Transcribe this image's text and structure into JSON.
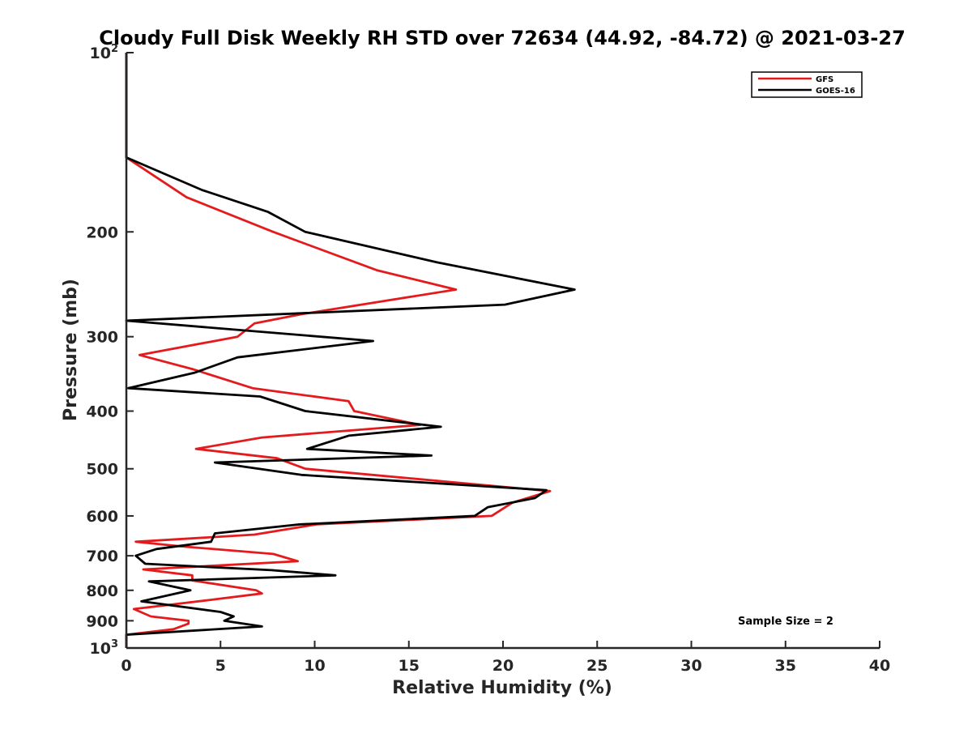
{
  "chart_data": {
    "type": "line",
    "title": "Cloudy Full Disk Weekly RH STD over 72634 (44.92, -84.72) @ 2021-03-27",
    "xlabel": "Relative Humidity (%)",
    "ylabel": "Pressure (mb)",
    "xlim": [
      0,
      40
    ],
    "ylim": [
      100,
      1000
    ],
    "y_scale": "log",
    "y_reversed": true,
    "grid": false,
    "legend_position": "top-right",
    "x_ticks": [
      "0",
      "5",
      "10",
      "15",
      "20",
      "25",
      "30",
      "35",
      "40"
    ],
    "y_ticks": [
      {
        "value": 100,
        "base": "10",
        "exp": "2"
      },
      {
        "value": 200,
        "label": "200"
      },
      {
        "value": 300,
        "label": "300"
      },
      {
        "value": 400,
        "label": "400"
      },
      {
        "value": 500,
        "label": "500"
      },
      {
        "value": 600,
        "label": "600"
      },
      {
        "value": 700,
        "label": "700"
      },
      {
        "value": 800,
        "label": "800"
      },
      {
        "value": 900,
        "label": "900"
      },
      {
        "value": 1000,
        "base": "10",
        "exp": "3"
      }
    ],
    "annotation": "Sample Size = 2",
    "series": [
      {
        "name": "GFS",
        "color": "#e41a1c",
        "points": [
          [
            0,
            100
          ],
          [
            0,
            150
          ],
          [
            3.2,
            175
          ],
          [
            7.8,
            200
          ],
          [
            13.3,
            232
          ],
          [
            17.5,
            250
          ],
          [
            9.3,
            275
          ],
          [
            6.8,
            285
          ],
          [
            5.9,
            300
          ],
          [
            0.7,
            322
          ],
          [
            3.5,
            340
          ],
          [
            6.7,
            366
          ],
          [
            11.8,
            385
          ],
          [
            12.1,
            400
          ],
          [
            15.6,
            422
          ],
          [
            7.2,
            443
          ],
          [
            3.7,
            463
          ],
          [
            8.0,
            480
          ],
          [
            9.5,
            500
          ],
          [
            17.4,
            527
          ],
          [
            22.5,
            545
          ],
          [
            20.5,
            570
          ],
          [
            19.4,
            600
          ],
          [
            10.1,
            620
          ],
          [
            6.8,
            645
          ],
          [
            0.5,
            663
          ],
          [
            2.9,
            675
          ],
          [
            7.8,
            695
          ],
          [
            9.1,
            715
          ],
          [
            0.9,
            738
          ],
          [
            3.5,
            755
          ],
          [
            3.5,
            770
          ],
          [
            6.9,
            800
          ],
          [
            7.2,
            810
          ],
          [
            4.5,
            830
          ],
          [
            0.4,
            860
          ],
          [
            1.3,
            885
          ],
          [
            3.3,
            900
          ],
          [
            3.3,
            910
          ],
          [
            2.5,
            930
          ],
          [
            0,
            950
          ],
          [
            0,
            1000
          ]
        ]
      },
      {
        "name": "GOES-16",
        "color": "#000000",
        "points": [
          [
            0,
            100
          ],
          [
            0,
            150
          ],
          [
            4.0,
            170
          ],
          [
            7.5,
            185
          ],
          [
            9.5,
            200
          ],
          [
            16.5,
            225
          ],
          [
            23.8,
            250
          ],
          [
            20.1,
            265
          ],
          [
            0,
            282
          ],
          [
            13.1,
            305
          ],
          [
            5.9,
            325
          ],
          [
            3.6,
            345
          ],
          [
            0.1,
            366
          ],
          [
            7.1,
            378
          ],
          [
            9.5,
            400
          ],
          [
            16.7,
            425
          ],
          [
            11.8,
            440
          ],
          [
            9.6,
            463
          ],
          [
            16.2,
            475
          ],
          [
            4.7,
            488
          ],
          [
            9.3,
            512
          ],
          [
            22.3,
            543
          ],
          [
            21.7,
            560
          ],
          [
            19.2,
            580
          ],
          [
            18.5,
            600
          ],
          [
            9.2,
            620
          ],
          [
            4.7,
            642
          ],
          [
            4.5,
            663
          ],
          [
            1.6,
            682
          ],
          [
            0.5,
            700
          ],
          [
            1.0,
            722
          ],
          [
            7.7,
            740
          ],
          [
            11.1,
            755
          ],
          [
            1.2,
            773
          ],
          [
            3.4,
            800
          ],
          [
            0.8,
            835
          ],
          [
            5.0,
            870
          ],
          [
            5.7,
            885
          ],
          [
            5.2,
            900
          ],
          [
            7.2,
            920
          ],
          [
            0,
            950
          ],
          [
            0,
            1000
          ]
        ]
      }
    ]
  }
}
